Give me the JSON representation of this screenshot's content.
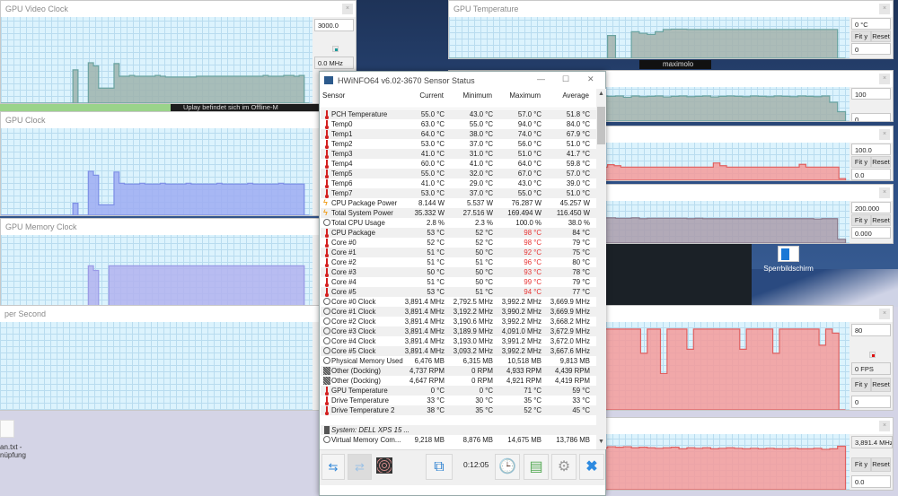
{
  "desktop": {
    "notification": "Uplay befindet sich im Offline-M",
    "taskbar_text": "maximolo",
    "icon_lockscreen_label": "Sperrbildschirm",
    "icon_file_label_1": "an.txt -",
    "icon_file_label_2": "nüpfung"
  },
  "graphs": [
    {
      "id": "gvc",
      "title": "GPU Video Clock",
      "max": "3000.0",
      "current": "0.0 MHz",
      "dot_color": "#1a9a9a",
      "fill": "#9db3ad",
      "stroke": "#6aa3a0",
      "levels": [
        0,
        0,
        0,
        0,
        0,
        0,
        0,
        0,
        0,
        0,
        0,
        0,
        0,
        0,
        0.42,
        0,
        0,
        0.51,
        0.47,
        0.19,
        0.19,
        0.19,
        0.5,
        0.34,
        0.34,
        0.35,
        0.34,
        0.34,
        0.34,
        0.34,
        0.35,
        0.34,
        0.33,
        0.33,
        0.33,
        0.33,
        0.33,
        0.33,
        0.34,
        0.34,
        0.34,
        0.34,
        0.34,
        0.34,
        0.34,
        0.34,
        0.34,
        0.34,
        0.34,
        0.34,
        0.34,
        0.35,
        0.34,
        0.34,
        0.34,
        0.35,
        0.35,
        0.34,
        0.35,
        0
      ]
    },
    {
      "id": "gc",
      "title": "GPU Clock",
      "fill": "#9eacf2",
      "stroke": "#7d8fe6",
      "levels": [
        0,
        0,
        0,
        0,
        0,
        0,
        0,
        0,
        0,
        0,
        0,
        0,
        0,
        0,
        0.15,
        0,
        0,
        0.55,
        0.5,
        0.13,
        0.13,
        0.13,
        0.54,
        0.4,
        0.39,
        0.39,
        0.39,
        0.4,
        0.39,
        0.39,
        0.39,
        0.4,
        0.39,
        0.39,
        0.39,
        0.39,
        0.4,
        0.39,
        0.39,
        0.39,
        0.39,
        0.39,
        0.4,
        0.39,
        0.39,
        0.39,
        0.39,
        0.39,
        0.4,
        0.39,
        0.39,
        0.39,
        0.39,
        0.39,
        0.4,
        0.39,
        0.39,
        0.39,
        0.39,
        0
      ]
    },
    {
      "id": "gmc",
      "title": "GPU Memory Clock",
      "fill": "#b1b1ef",
      "stroke": "#9a9ae6",
      "levels": [
        0,
        0,
        0,
        0,
        0,
        0,
        0,
        0,
        0,
        0,
        0,
        0,
        0,
        0,
        0,
        0,
        0,
        0.62,
        0.55,
        0,
        0,
        0.62,
        0.62,
        0.62,
        0.62,
        0.62,
        0.62,
        0.62,
        0.62,
        0.62,
        0.62,
        0.62,
        0.62,
        0.62,
        0.62,
        0.62,
        0.62,
        0.62,
        0.62,
        0.62,
        0.62,
        0.62,
        0.62,
        0.62,
        0.62,
        0.62,
        0.62,
        0.62,
        0.62,
        0.62,
        0.62,
        0.62,
        0.62,
        0.62,
        0.62,
        0.62,
        0.62,
        0.62,
        0.62,
        0
      ]
    },
    {
      "id": "pps",
      "title": "per Second",
      "fill": "#9db3ad",
      "stroke": "#6aa3a0",
      "levels": []
    },
    {
      "id": "gt",
      "title": "GPU Temperature",
      "max": "0 °C",
      "min": "0",
      "fit": "Fit y",
      "reset": "Reset",
      "fill": "#a3b1ab",
      "stroke": "#6aa3a0",
      "levels": [
        0,
        0,
        0,
        0,
        0,
        0,
        0,
        0,
        0,
        0,
        0,
        0,
        0,
        0,
        0,
        0,
        0,
        0,
        0,
        0,
        0.6,
        0,
        0,
        0.7,
        0.66,
        0.63,
        0.7,
        0.76,
        0.77,
        0.77,
        0.76,
        0.76,
        0.76,
        0.76,
        0.76,
        0.76,
        0.76,
        0.76,
        0.76,
        0.76,
        0.76,
        0.76,
        0.76,
        0.76,
        0.76,
        0.76,
        0.76,
        0.76,
        0.76,
        0
      ]
    },
    {
      "id": "r2",
      "title": "",
      "max": "100",
      "min": "0",
      "fill": "#a3b1ab",
      "stroke": "#6aa3a0",
      "levels": [
        0.45,
        0.55,
        0.8,
        0.7,
        0.45,
        0.65,
        0.55,
        0.75,
        0.8,
        0.72,
        0.8,
        0.82,
        0.84,
        0.82,
        0.86,
        0.8,
        0.82,
        0.8,
        0.78,
        0.8,
        0.79,
        0.8,
        0.76,
        0.8,
        0.78,
        0.79,
        0.8,
        0.77,
        0.79,
        0.8,
        0.78,
        0.79,
        0.8,
        0.77,
        0.79,
        0.8,
        0.79,
        0.78,
        0.8,
        0.79,
        0.78,
        0.8,
        0.79,
        0.78,
        0.8,
        0.79,
        0.78,
        0.8,
        0.6,
        0.3
      ]
    },
    {
      "id": "r3",
      "title": "",
      "max": "100.0",
      "min": "0.0",
      "fit": "Fit y",
      "reset": "Reset",
      "fill": "#f59a9a",
      "stroke": "#e06060",
      "levels": [
        0.1,
        0.3,
        1,
        0.95,
        0.4,
        0.1,
        0.2,
        0.7,
        0.6,
        0.15,
        0.2,
        0.25,
        0.2,
        0.4,
        0.7,
        0.4,
        0.38,
        0.39,
        0.38,
        0.38,
        0.39,
        0.38,
        0.38,
        0.38,
        0.45,
        0.42,
        0.38,
        0.38,
        0.38,
        0.38,
        0.38,
        0.38,
        0.38,
        0.38,
        0.38,
        0.38,
        0.38,
        0.38,
        0.38,
        0.38,
        0.5,
        0.42,
        0.38,
        0.38,
        0.38,
        0.38,
        0.38,
        0.38,
        0.38,
        0.38,
        0.38,
        0.38,
        0.38,
        0.46,
        0.38,
        0.38,
        0.38,
        0.38,
        0.38,
        0.05
      ]
    },
    {
      "id": "r4",
      "title": "",
      "max": "200.000",
      "min": "0.000",
      "fit": "Fit y",
      "reset": "Reset",
      "fill": "#aa9cab",
      "stroke": "#8a7a8c",
      "levels": [
        0.3,
        0.65,
        0.68,
        0.4,
        0.25,
        0.7,
        0.4,
        0.35,
        0.38,
        0.37,
        0.8,
        0.68,
        0.68,
        0.68,
        0.68,
        0.68,
        0.68,
        0.68,
        0.68,
        0.65,
        0.65,
        0.64,
        0.64,
        0.65,
        0.63,
        0.64,
        0.64,
        0.64,
        0.64,
        0.64,
        0.63,
        0.64,
        0.63,
        0.63,
        0.63,
        0.63,
        0.63,
        0.63,
        0.63,
        0.63,
        0.63,
        0.63,
        0.63,
        0.63,
        0.63,
        0.63,
        0.62,
        0.63,
        0.63,
        0.1
      ]
    },
    {
      "id": "fps",
      "title": "",
      "max": "80",
      "current": "0 FPS",
      "min": "0",
      "fit": "Fit y",
      "reset": "Reset",
      "dot_color": "#e01010",
      "fill": "#f59a9a",
      "stroke": "#e06060",
      "levels": [
        0,
        0.45,
        0.2,
        0.5,
        1,
        1,
        0,
        0,
        0.5,
        0.95,
        1,
        1,
        0.6,
        1,
        0.5,
        0.9,
        1,
        1,
        1,
        1,
        0.6,
        1,
        1,
        1,
        1,
        1,
        1,
        1,
        1,
        0.7,
        1,
        1,
        0.45,
        1,
        1,
        1,
        0.75,
        1,
        1,
        1,
        1,
        1,
        1,
        1,
        0.75,
        1,
        1,
        1,
        1,
        0.7,
        1,
        1,
        1,
        1,
        1,
        1,
        0.8,
        1,
        0.95,
        0
      ]
    },
    {
      "id": "clk",
      "title": "",
      "current": "3,891.4 MHz",
      "min": "0.0",
      "fit": "Fit y",
      "reset": "Reset",
      "fill": "#f59a9a",
      "stroke": "#e06060",
      "levels": [
        0.85,
        0.6,
        0.83,
        0.8,
        0.85,
        0.84,
        0.85,
        0.85,
        0.85,
        0.83,
        0.85,
        0.84,
        0.85,
        0.84,
        0.83,
        0.85,
        0.82,
        0.84,
        0.83,
        0.82,
        0.84,
        0.83,
        0.84,
        0.82,
        0.83,
        0.82,
        0.81,
        0.82,
        0.83,
        0.8,
        0.82,
        0.81,
        0.82,
        0.8,
        0.81,
        0.82,
        0.81,
        0.8,
        0.81,
        0.8,
        0.81,
        0.8,
        0.8,
        0.81,
        0.8,
        0.8,
        0.81,
        0.79,
        0.8,
        0.85
      ]
    }
  ],
  "hwinfo": {
    "title": "HWiNFO64 v6.02-3670 Sensor Status",
    "columns": [
      "Sensor",
      "Current",
      "Minimum",
      "Maximum",
      "Average"
    ],
    "rows": [
      {
        "icon": "thermometer",
        "name": "PCH Temperature",
        "cur": "55.0 °C",
        "min": "43.0 °C",
        "max": "57.0 °C",
        "avg": "51.8 °C"
      },
      {
        "icon": "thermometer",
        "name": "Temp0",
        "cur": "63.0 °C",
        "min": "55.0 °C",
        "max": "94.0 °C",
        "avg": "84.0 °C"
      },
      {
        "icon": "thermometer",
        "name": "Temp1",
        "cur": "64.0 °C",
        "min": "38.0 °C",
        "max": "74.0 °C",
        "avg": "67.9 °C"
      },
      {
        "icon": "thermometer",
        "name": "Temp2",
        "cur": "53.0 °C",
        "min": "37.0 °C",
        "max": "56.0 °C",
        "avg": "51.0 °C"
      },
      {
        "icon": "thermometer",
        "name": "Temp3",
        "cur": "41.0 °C",
        "min": "31.0 °C",
        "max": "51.0 °C",
        "avg": "41.7 °C"
      },
      {
        "icon": "thermometer",
        "name": "Temp4",
        "cur": "60.0 °C",
        "min": "41.0 °C",
        "max": "64.0 °C",
        "avg": "59.8 °C"
      },
      {
        "icon": "thermometer",
        "name": "Temp5",
        "cur": "55.0 °C",
        "min": "32.0 °C",
        "max": "67.0 °C",
        "avg": "57.0 °C"
      },
      {
        "icon": "thermometer",
        "name": "Temp6",
        "cur": "41.0 °C",
        "min": "29.0 °C",
        "max": "43.0 °C",
        "avg": "39.0 °C"
      },
      {
        "icon": "thermometer",
        "name": "Temp7",
        "cur": "53.0 °C",
        "min": "37.0 °C",
        "max": "55.0 °C",
        "avg": "51.0 °C"
      },
      {
        "icon": "power",
        "name": "CPU Package Power",
        "cur": "8.144 W",
        "min": "5.537 W",
        "max": "76.287 W",
        "avg": "45.257 W"
      },
      {
        "icon": "power",
        "name": "Total System Power",
        "cur": "35.332 W",
        "min": "27.516 W",
        "max": "169.494 W",
        "avg": "116.450 W"
      },
      {
        "icon": "gauge",
        "name": "Total CPU Usage",
        "cur": "2.8 %",
        "min": "2.3 %",
        "max": "100.0 %",
        "avg": "38.0 %"
      },
      {
        "icon": "thermometer",
        "name": "CPU Package",
        "cur": "53 °C",
        "min": "52 °C",
        "max": "98 °C",
        "avg": "84 °C",
        "max_alert": true
      },
      {
        "icon": "thermometer",
        "name": "Core #0",
        "cur": "52 °C",
        "min": "52 °C",
        "max": "98 °C",
        "avg": "79 °C",
        "max_alert": true
      },
      {
        "icon": "thermometer",
        "name": "Core #1",
        "cur": "51 °C",
        "min": "50 °C",
        "max": "92 °C",
        "avg": "75 °C",
        "max_alert": true
      },
      {
        "icon": "thermometer",
        "name": "Core #2",
        "cur": "51 °C",
        "min": "51 °C",
        "max": "96 °C",
        "avg": "80 °C",
        "max_alert": true
      },
      {
        "icon": "thermometer",
        "name": "Core #3",
        "cur": "50 °C",
        "min": "50 °C",
        "max": "93 °C",
        "avg": "78 °C",
        "max_alert": true
      },
      {
        "icon": "thermometer",
        "name": "Core #4",
        "cur": "51 °C",
        "min": "50 °C",
        "max": "99 °C",
        "avg": "79 °C",
        "max_alert": true
      },
      {
        "icon": "thermometer",
        "name": "Core #5",
        "cur": "53 °C",
        "min": "51 °C",
        "max": "94 °C",
        "avg": "77 °C",
        "max_alert": true
      },
      {
        "icon": "gauge",
        "name": "Core #0 Clock",
        "cur": "3,891.4 MHz",
        "min": "2,792.5 MHz",
        "max": "3,992.2 MHz",
        "avg": "3,669.9 MHz"
      },
      {
        "icon": "gauge",
        "name": "Core #1 Clock",
        "cur": "3,891.4 MHz",
        "min": "3,192.2 MHz",
        "max": "3,990.2 MHz",
        "avg": "3,669.9 MHz"
      },
      {
        "icon": "gauge",
        "name": "Core #2 Clock",
        "cur": "3,891.4 MHz",
        "min": "3,190.6 MHz",
        "max": "3,992.2 MHz",
        "avg": "3,668.2 MHz"
      },
      {
        "icon": "gauge",
        "name": "Core #3 Clock",
        "cur": "3,891.4 MHz",
        "min": "3,189.9 MHz",
        "max": "4,091.0 MHz",
        "avg": "3,672.9 MHz"
      },
      {
        "icon": "gauge",
        "name": "Core #4 Clock",
        "cur": "3,891.4 MHz",
        "min": "3,193.0 MHz",
        "max": "3,991.2 MHz",
        "avg": "3,672.0 MHz"
      },
      {
        "icon": "gauge",
        "name": "Core #5 Clock",
        "cur": "3,891.4 MHz",
        "min": "3,093.2 MHz",
        "max": "3,992.2 MHz",
        "avg": "3,667.6 MHz"
      },
      {
        "icon": "gauge",
        "name": "Physical Memory Used",
        "cur": "6,476 MB",
        "min": "6,315 MB",
        "max": "10,518 MB",
        "avg": "9,813 MB"
      },
      {
        "icon": "fan",
        "name": "Other (Docking)",
        "cur": "4,737 RPM",
        "min": "0 RPM",
        "max": "4,933 RPM",
        "avg": "4,439 RPM"
      },
      {
        "icon": "fan",
        "name": "Other (Docking)",
        "cur": "4,647 RPM",
        "min": "0 RPM",
        "max": "4,921 RPM",
        "avg": "4,419 RPM"
      },
      {
        "icon": "thermometer",
        "name": "GPU Temperature",
        "cur": "0 °C",
        "min": "0 °C",
        "max": "71 °C",
        "avg": "59 °C"
      },
      {
        "icon": "thermometer",
        "name": "Drive Temperature",
        "cur": "33 °C",
        "min": "30 °C",
        "max": "35 °C",
        "avg": "33 °C"
      },
      {
        "icon": "thermometer",
        "name": "Drive Temperature 2",
        "cur": "38 °C",
        "min": "35 °C",
        "max": "52 °C",
        "avg": "45 °C"
      },
      {
        "blank": true
      },
      {
        "section": true,
        "icon": "chip",
        "name": "System: DELL XPS 15 ..."
      },
      {
        "icon": "gauge",
        "name": "Virtual Memory Com...",
        "cur": "9,218 MB",
        "min": "8,876 MB",
        "max": "14,675 MB",
        "avg": "13,786 MB"
      }
    ],
    "alert_color": "#e83030",
    "timer": "0:12:05"
  }
}
